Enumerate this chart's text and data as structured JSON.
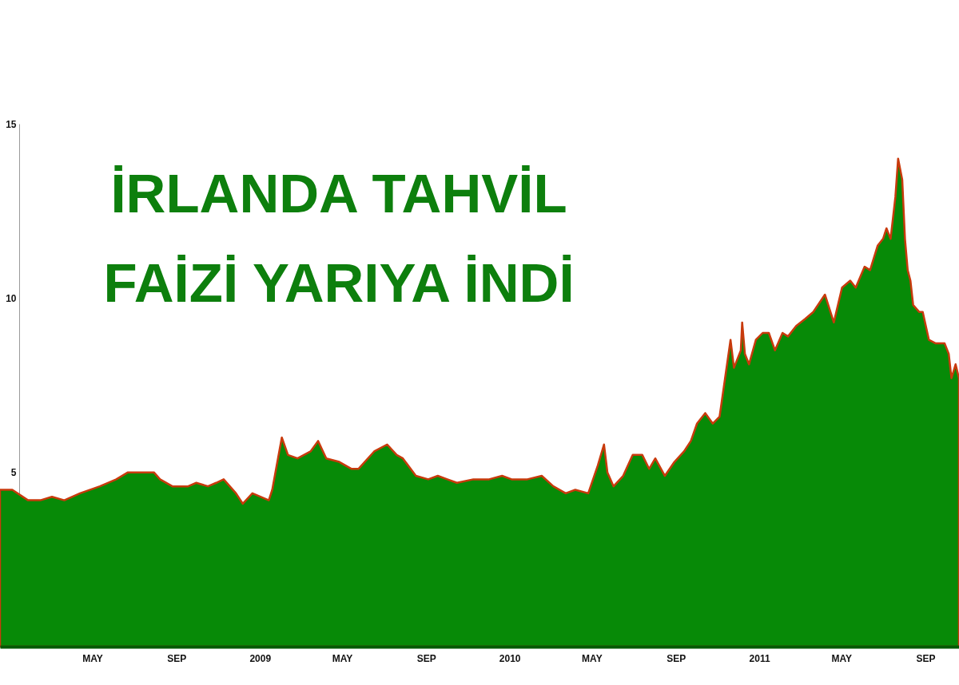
{
  "chart_data": {
    "type": "area",
    "title": "İRLANDA TAHVİL FAİZİ YARIYA İNDİ",
    "x": [
      "2007-12-18",
      "2008-01-05",
      "2008-01-28",
      "2008-02-15",
      "2008-03-03",
      "2008-03-21",
      "2008-04-13",
      "2008-05-12",
      "2008-06-05",
      "2008-06-22",
      "2008-07-10",
      "2008-07-30",
      "2008-08-08",
      "2008-08-26",
      "2008-09-18",
      "2008-09-30",
      "2008-10-17",
      "2008-10-29",
      "2008-11-09",
      "2008-11-27",
      "2008-12-07",
      "2008-12-21",
      "2009-01-14",
      "2009-01-19",
      "2009-02-02",
      "2009-02-11",
      "2009-02-25",
      "2009-03-16",
      "2009-03-27",
      "2009-04-08",
      "2009-04-27",
      "2009-05-15",
      "2009-05-25",
      "2009-06-17",
      "2009-07-06",
      "2009-07-20",
      "2009-07-29",
      "2009-08-17",
      "2009-09-04",
      "2009-09-18",
      "2009-10-02",
      "2009-10-16",
      "2009-11-09",
      "2009-12-02",
      "2009-12-21",
      "2010-01-04",
      "2010-01-27",
      "2010-02-17",
      "2010-03-06",
      "2010-03-24",
      "2010-04-07",
      "2010-04-26",
      "2010-05-10",
      "2010-05-19",
      "2010-05-24",
      "2010-06-02",
      "2010-06-16",
      "2010-06-30",
      "2010-07-14",
      "2010-07-24",
      "2010-08-02",
      "2010-08-16",
      "2010-08-30",
      "2010-09-13",
      "2010-09-23",
      "2010-10-02",
      "2010-10-14",
      "2010-10-25",
      "2010-11-04",
      "2010-11-12",
      "2010-11-20",
      "2010-11-25",
      "2010-12-05",
      "2010-12-07",
      "2010-12-11",
      "2010-12-17",
      "2010-12-27",
      "2011-01-06",
      "2011-01-15",
      "2011-01-24",
      "2011-02-04",
      "2011-02-12",
      "2011-02-24",
      "2011-03-09",
      "2011-03-21",
      "2011-04-07",
      "2011-04-20",
      "2011-05-02",
      "2011-05-14",
      "2011-05-22",
      "2011-06-04",
      "2011-06-12",
      "2011-06-23",
      "2011-07-01",
      "2011-07-06",
      "2011-07-12",
      "2011-07-19",
      "2011-07-23",
      "2011-07-29",
      "2011-08-02",
      "2011-08-06",
      "2011-08-10",
      "2011-08-14",
      "2011-08-23",
      "2011-08-28",
      "2011-09-06",
      "2011-09-16",
      "2011-09-29",
      "2011-10-05",
      "2011-10-09",
      "2011-10-15",
      "2011-10-20"
    ],
    "values": [
      4.5,
      4.5,
      4.2,
      4.2,
      4.3,
      4.2,
      4.4,
      4.6,
      4.8,
      5.0,
      5.0,
      5.0,
      4.8,
      4.6,
      4.6,
      4.7,
      4.6,
      4.7,
      4.8,
      4.4,
      4.1,
      4.4,
      4.2,
      4.5,
      6.0,
      5.5,
      5.4,
      5.6,
      5.9,
      5.4,
      5.3,
      5.1,
      5.1,
      5.6,
      5.8,
      5.5,
      5.4,
      4.9,
      4.8,
      4.9,
      4.8,
      4.7,
      4.8,
      4.8,
      4.9,
      4.8,
      4.8,
      4.9,
      4.6,
      4.4,
      4.5,
      4.4,
      5.2,
      5.8,
      5.0,
      4.6,
      4.9,
      5.5,
      5.5,
      5.1,
      5.4,
      4.9,
      5.3,
      5.6,
      5.9,
      6.4,
      6.7,
      6.4,
      6.6,
      7.7,
      8.8,
      8.0,
      8.5,
      9.3,
      8.4,
      8.1,
      8.8,
      9.0,
      9.0,
      8.5,
      9.0,
      8.9,
      9.2,
      9.4,
      9.6,
      10.1,
      9.3,
      10.3,
      10.5,
      10.3,
      10.9,
      10.8,
      11.5,
      11.7,
      12.0,
      11.7,
      12.9,
      14.0,
      13.4,
      11.7,
      10.8,
      10.5,
      9.8,
      9.6,
      9.6,
      8.8,
      8.7,
      8.7,
      8.4,
      7.7,
      8.1,
      7.7
    ],
    "color": "#078a07",
    "xlim": [
      "2007-12-18",
      "2011-10-20"
    ],
    "ylim": [
      0,
      15
    ],
    "xticks": [
      {
        "value": "2008-05",
        "label": "MAY"
      },
      {
        "value": "2008-09",
        "label": "SEP"
      },
      {
        "value": "2009",
        "label": "2009"
      },
      {
        "value": "2009-05",
        "label": "MAY"
      },
      {
        "value": "2009-09",
        "label": "SEP"
      },
      {
        "value": "2010",
        "label": "2010"
      },
      {
        "value": "2010-05",
        "label": "MAY"
      },
      {
        "value": "2010-09",
        "label": "SEP"
      },
      {
        "value": "2011",
        "label": "2011"
      },
      {
        "value": "2011-05",
        "label": "MAY"
      },
      {
        "value": "2011-09",
        "label": "SEP"
      }
    ],
    "yticks": [
      5,
      10,
      15
    ]
  }
}
